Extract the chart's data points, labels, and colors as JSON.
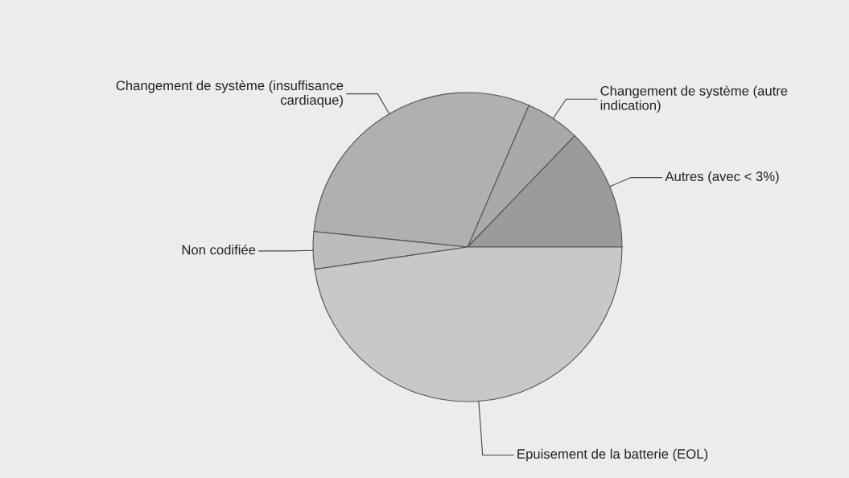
{
  "chart_data": {
    "type": "pie",
    "categories": [
      "Autres (avec < 3%)",
      "Changement de système (autre\nindication)",
      "Changement de système (insuffisance\ncardiaque)",
      "Non codifiée",
      "Epuisement de la batterie (EOL)"
    ],
    "values": [
      12.8,
      5.7,
      29.9,
      3.9,
      47.7
    ],
    "colors": [
      "#9b9b9b",
      "#a9a9a9",
      "#b0b0b0",
      "#bcbcbc",
      "#c8c8c8"
    ]
  }
}
